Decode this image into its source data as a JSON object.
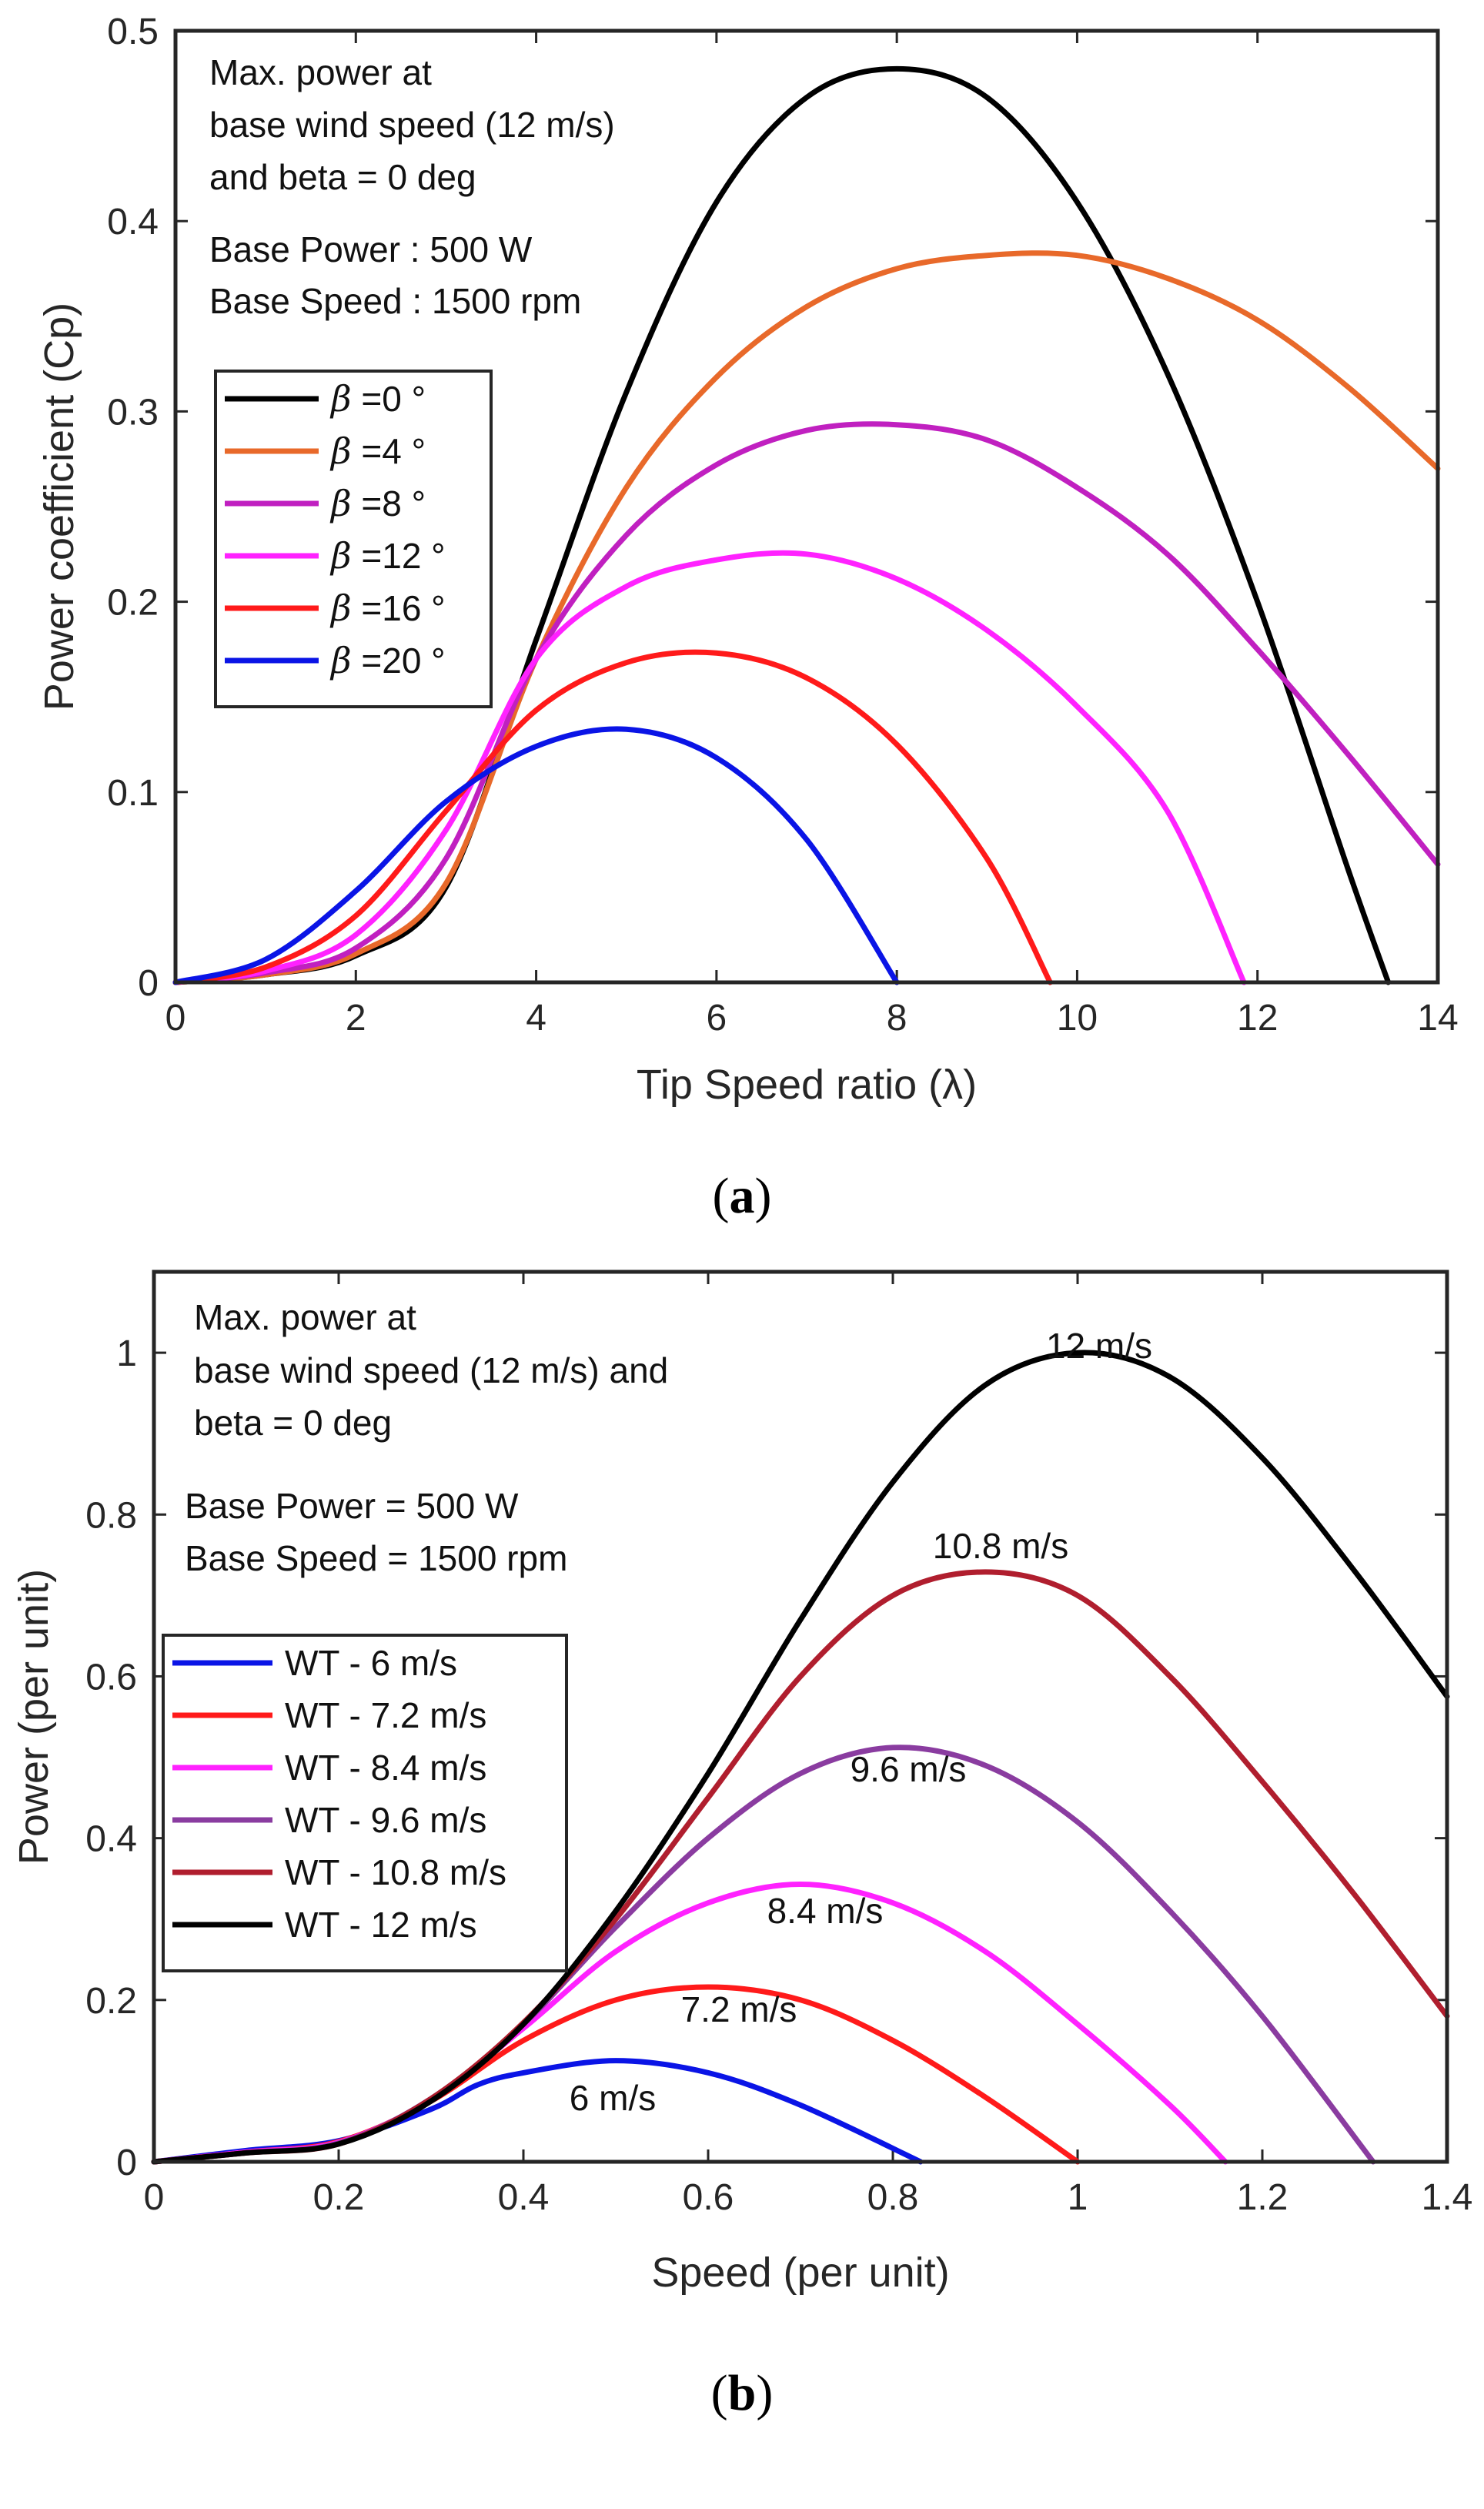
{
  "chart_data": [
    {
      "id": "a",
      "type": "line",
      "caption_letter": "a",
      "xlabel": "Tip Speed ratio (λ)",
      "ylabel": "Power coefficient (Cp)",
      "xlim": [
        0,
        14
      ],
      "ylim": [
        0,
        0.5
      ],
      "xticks": [
        "0",
        "2",
        "4",
        "6",
        "8",
        "10",
        "12",
        "14"
      ],
      "yticks": [
        "0",
        "0.1",
        "0.2",
        "0.3",
        "0.4",
        "0.5"
      ],
      "notes": [
        "Max. power at",
        "base wind speed (12 m/s)",
        "and beta = 0 deg",
        "Base Power : 500 W",
        "Base Speed : 1500 rpm"
      ],
      "legend_position": "upper-left",
      "series": [
        {
          "name": "β =0 °",
          "symbol": "β",
          "suffix": " =0 °",
          "color": "#000000",
          "points": [
            [
              0,
              0
            ],
            [
              1,
              0.004
            ],
            [
              2,
              0.014
            ],
            [
              3,
              0.05
            ],
            [
              4,
              0.18
            ],
            [
              5,
              0.31
            ],
            [
              6,
              0.41
            ],
            [
              7,
              0.465
            ],
            [
              8,
              0.48
            ],
            [
              9,
              0.465
            ],
            [
              10,
              0.41
            ],
            [
              11,
              0.32
            ],
            [
              12,
              0.2
            ],
            [
              13,
              0.06
            ],
            [
              13.45,
              0
            ]
          ]
        },
        {
          "name": "β =4 °",
          "symbol": "β",
          "suffix": " =4 °",
          "color": "#E8692A",
          "points": [
            [
              0,
              0
            ],
            [
              1,
              0.004
            ],
            [
              2,
              0.015
            ],
            [
              3,
              0.052
            ],
            [
              4,
              0.17
            ],
            [
              5,
              0.26
            ],
            [
              6,
              0.318
            ],
            [
              7,
              0.355
            ],
            [
              8,
              0.375
            ],
            [
              9,
              0.382
            ],
            [
              10,
              0.382
            ],
            [
              11,
              0.37
            ],
            [
              12,
              0.348
            ],
            [
              13,
              0.313
            ],
            [
              14,
              0.27
            ]
          ]
        },
        {
          "name": "β =8 °",
          "symbol": "β",
          "suffix": " =8 °",
          "color": "#C020C0",
          "points": [
            [
              0,
              0
            ],
            [
              1,
              0.005
            ],
            [
              2,
              0.018
            ],
            [
              3,
              0.065
            ],
            [
              4,
              0.17
            ],
            [
              5,
              0.235
            ],
            [
              6,
              0.272
            ],
            [
              7,
              0.29
            ],
            [
              8,
              0.293
            ],
            [
              9,
              0.285
            ],
            [
              10,
              0.26
            ],
            [
              11,
              0.225
            ],
            [
              12,
              0.175
            ],
            [
              13,
              0.12
            ],
            [
              14,
              0.062
            ]
          ]
        },
        {
          "name": "β =12 °",
          "symbol": "β",
          "suffix": " =12 °",
          "color": "#FF22FF",
          "points": [
            [
              0,
              0
            ],
            [
              1,
              0.006
            ],
            [
              2,
              0.025
            ],
            [
              3,
              0.08
            ],
            [
              4,
              0.17
            ],
            [
              5,
              0.208
            ],
            [
              6,
              0.222
            ],
            [
              7,
              0.225
            ],
            [
              8,
              0.212
            ],
            [
              9,
              0.185
            ],
            [
              10,
              0.145
            ],
            [
              11,
              0.09
            ],
            [
              11.85,
              0
            ]
          ]
        },
        {
          "name": "β =16 °",
          "symbol": "β",
          "suffix": " =16 °",
          "color": "#FF1A1A",
          "points": [
            [
              0,
              0
            ],
            [
              1,
              0.008
            ],
            [
              2,
              0.035
            ],
            [
              3,
              0.09
            ],
            [
              4,
              0.143
            ],
            [
              5,
              0.168
            ],
            [
              6,
              0.173
            ],
            [
              7,
              0.16
            ],
            [
              8,
              0.125
            ],
            [
              9,
              0.065
            ],
            [
              9.7,
              0
            ]
          ]
        },
        {
          "name": "β =20 °",
          "symbol": "β",
          "suffix": " =20 °",
          "color": "#0A14E6",
          "points": [
            [
              0,
              0
            ],
            [
              1,
              0.012
            ],
            [
              2,
              0.048
            ],
            [
              3,
              0.095
            ],
            [
              4,
              0.124
            ],
            [
              5,
              0.133
            ],
            [
              6,
              0.118
            ],
            [
              7,
              0.075
            ],
            [
              8,
              0
            ]
          ]
        }
      ]
    },
    {
      "id": "b",
      "type": "line",
      "caption_letter": "b",
      "xlabel": "Speed (per unit)",
      "ylabel": "Power (per unit)",
      "xlim": [
        0,
        1.4
      ],
      "ylim": [
        0,
        1.1
      ],
      "xticks": [
        "0",
        "0.2",
        "0.4",
        "0.6",
        "0.8",
        "1",
        "1.2",
        "1.4"
      ],
      "yticks": [
        "0",
        "0.2",
        "0.4",
        "0.6",
        "0.8",
        "1"
      ],
      "notes": [
        "Max. power at",
        "base wind speed (12 m/s) and",
        "beta = 0 deg",
        "Base Power = 500 W",
        "Base Speed = 1500 rpm"
      ],
      "legend_position": "middle-left",
      "curve_labels": [
        "12 m/s",
        "10.8 m/s",
        "9.6 m/s",
        "8.4 m/s",
        "7.2 m/s",
        "6 m/s"
      ],
      "series": [
        {
          "name": "WT - 6 m/s",
          "color": "#0A14E6",
          "points": [
            [
              0,
              0
            ],
            [
              0.1,
              0.014
            ],
            [
              0.2,
              0.026
            ],
            [
              0.3,
              0.065
            ],
            [
              0.35,
              0.095
            ],
            [
              0.4,
              0.11
            ],
            [
              0.5,
              0.125
            ],
            [
              0.6,
              0.11
            ],
            [
              0.7,
              0.07
            ],
            [
              0.83,
              0
            ]
          ]
        },
        {
          "name": "WT - 7.2 m/s",
          "color": "#FF1A1A",
          "points": [
            [
              0,
              0
            ],
            [
              0.1,
              0.012
            ],
            [
              0.2,
              0.025
            ],
            [
              0.3,
              0.075
            ],
            [
              0.4,
              0.15
            ],
            [
              0.5,
              0.2
            ],
            [
              0.6,
              0.216
            ],
            [
              0.7,
              0.2
            ],
            [
              0.8,
              0.15
            ],
            [
              0.9,
              0.08
            ],
            [
              1.0,
              0
            ]
          ]
        },
        {
          "name": "WT - 8.4 m/s",
          "color": "#FF22FF",
          "points": [
            [
              0,
              0
            ],
            [
              0.1,
              0.012
            ],
            [
              0.2,
              0.024
            ],
            [
              0.3,
              0.077
            ],
            [
              0.4,
              0.165
            ],
            [
              0.5,
              0.26
            ],
            [
              0.6,
              0.32
            ],
            [
              0.7,
              0.343
            ],
            [
              0.8,
              0.32
            ],
            [
              0.9,
              0.26
            ],
            [
              1.0,
              0.17
            ],
            [
              1.1,
              0.07
            ],
            [
              1.16,
              0
            ]
          ]
        },
        {
          "name": "WT - 9.6 m/s",
          "color": "#8A3CA0",
          "points": [
            [
              0,
              0
            ],
            [
              0.1,
              0.011
            ],
            [
              0.2,
              0.023
            ],
            [
              0.3,
              0.078
            ],
            [
              0.4,
              0.17
            ],
            [
              0.5,
              0.29
            ],
            [
              0.6,
              0.4
            ],
            [
              0.7,
              0.48
            ],
            [
              0.8,
              0.512
            ],
            [
              0.9,
              0.49
            ],
            [
              1.0,
              0.42
            ],
            [
              1.1,
              0.31
            ],
            [
              1.2,
              0.18
            ],
            [
              1.32,
              0
            ]
          ]
        },
        {
          "name": "WT - 10.8 m/s",
          "color": "#B01E2E",
          "points": [
            [
              0,
              0
            ],
            [
              0.1,
              0.011
            ],
            [
              0.2,
              0.022
            ],
            [
              0.3,
              0.078
            ],
            [
              0.4,
              0.172
            ],
            [
              0.5,
              0.3
            ],
            [
              0.6,
              0.45
            ],
            [
              0.7,
              0.6
            ],
            [
              0.8,
              0.7
            ],
            [
              0.9,
              0.729
            ],
            [
              1.0,
              0.7
            ],
            [
              1.1,
              0.6
            ],
            [
              1.2,
              0.47
            ],
            [
              1.3,
              0.33
            ],
            [
              1.4,
              0.18
            ]
          ]
        },
        {
          "name": "WT - 12 m/s",
          "color": "#000000",
          "points": [
            [
              0,
              0
            ],
            [
              0.1,
              0.011
            ],
            [
              0.2,
              0.022
            ],
            [
              0.3,
              0.075
            ],
            [
              0.4,
              0.17
            ],
            [
              0.5,
              0.31
            ],
            [
              0.6,
              0.48
            ],
            [
              0.7,
              0.67
            ],
            [
              0.8,
              0.84
            ],
            [
              0.9,
              0.96
            ],
            [
              1.0,
              1.0
            ],
            [
              1.1,
              0.97
            ],
            [
              1.2,
              0.87
            ],
            [
              1.3,
              0.73
            ],
            [
              1.4,
              0.575
            ]
          ]
        }
      ]
    }
  ]
}
